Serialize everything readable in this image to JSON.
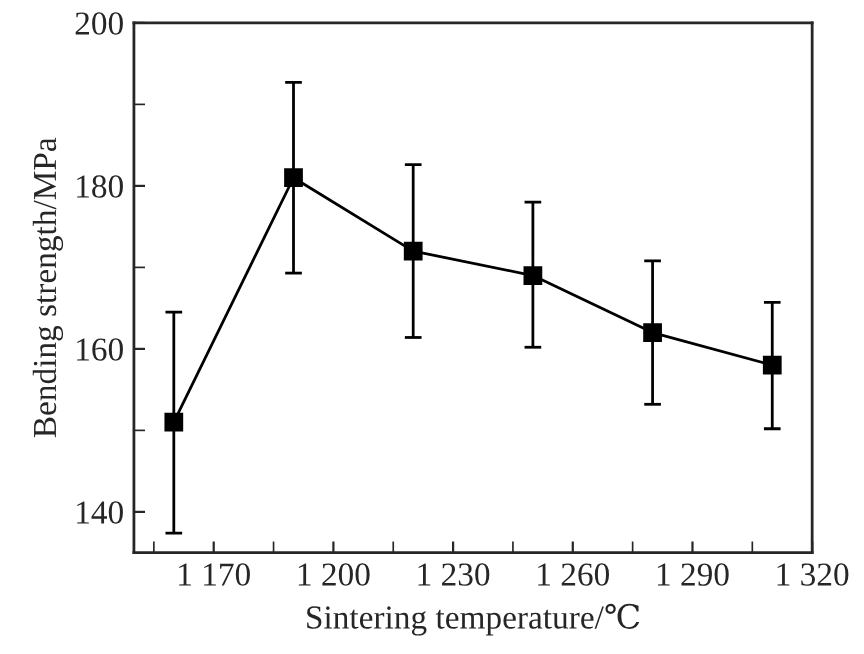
{
  "chart_data": {
    "type": "line",
    "xlabel": "Sintering temperature/℃",
    "ylabel": "Bending strength/MPa",
    "x": [
      1160,
      1190,
      1220,
      1250,
      1280,
      1310
    ],
    "series": [
      {
        "color": "#000000",
        "values": [
          151,
          181,
          172,
          169,
          162,
          158
        ],
        "errors": [
          [
            137.4,
            164.5
          ],
          [
            169.3,
            192.7
          ],
          [
            161.4,
            182.6
          ],
          [
            160.2,
            178
          ],
          [
            153.2,
            170.8
          ],
          [
            150.2,
            165.7
          ]
        ]
      }
    ],
    "xlim": [
      1150,
      1320
    ],
    "xticks": [
      {
        "value": 1170,
        "label": "1 170"
      },
      {
        "value": 1200,
        "label": "1 200"
      },
      {
        "value": 1230,
        "label": "1 230"
      },
      {
        "value": 1260,
        "label": "1 260"
      },
      {
        "value": 1290,
        "label": "1 290"
      },
      {
        "value": 1320,
        "label": "1 320"
      }
    ],
    "ylim": [
      135,
      200
    ],
    "yticks": [
      140,
      160,
      180,
      200
    ],
    "grid": false,
    "legend": false,
    "marker": "square",
    "line_style": "solid"
  }
}
